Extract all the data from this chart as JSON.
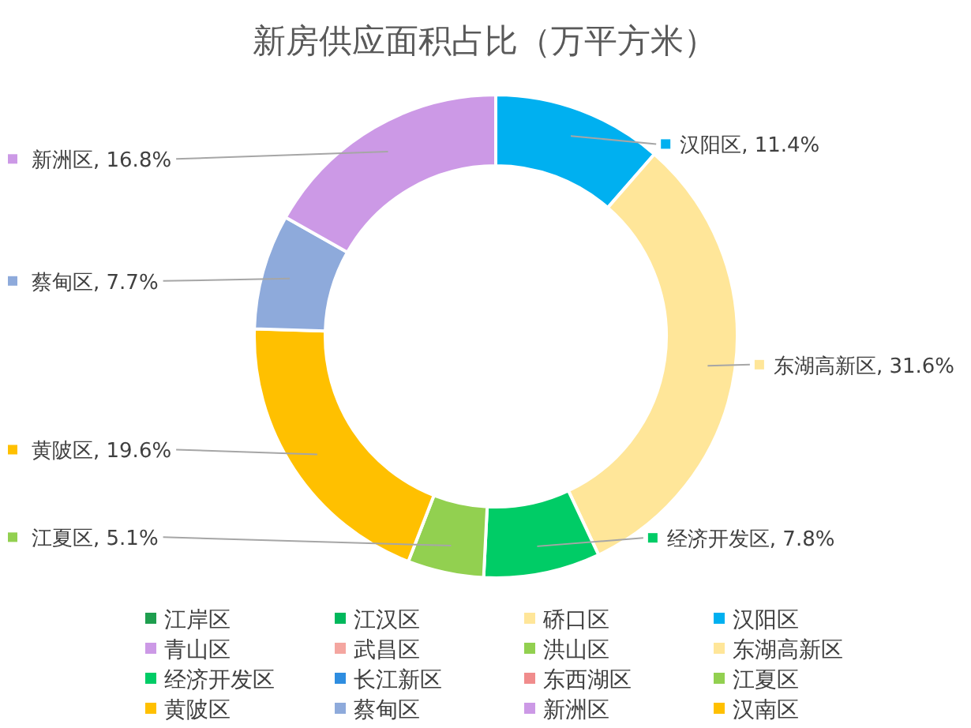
{
  "chart_data": {
    "type": "donut",
    "title": "新房供应面积占比（万平方米）",
    "categories": [
      "江岸区",
      "江汉区",
      "硚口区",
      "汉阳区",
      "青山区",
      "武昌区",
      "洪山区",
      "东湖高新区",
      "经济开发区",
      "长江新区",
      "东西湖区",
      "江夏区",
      "黄陂区",
      "蔡甸区",
      "新洲区",
      "汉南区"
    ],
    "values": [
      0,
      0,
      0,
      11.4,
      0,
      0,
      0,
      31.6,
      7.8,
      0,
      0,
      5.1,
      19.6,
      7.7,
      16.8,
      0
    ],
    "colors": [
      "#1e9e4e",
      "#00b85c",
      "#ffe699",
      "#00b0f0",
      "#cc99e6",
      "#f4a6a0",
      "#92d050",
      "#ffe699",
      "#00cc66",
      "#2e8de0",
      "#f08c8c",
      "#92d050",
      "#ffc000",
      "#8eaadb",
      "#cc99e6",
      "#ffc000"
    ],
    "value_labels": [
      null,
      null,
      null,
      "汉阳区, 11.4%",
      null,
      null,
      null,
      "东湖高新区, 31.6%",
      "经济开发区, 7.8%",
      null,
      null,
      "江夏区, 5.1%",
      "黄陂区, 19.6%",
      "蔡甸区, 7.7%",
      "新洲区, 16.8%",
      null
    ],
    "legend": "bottom"
  }
}
